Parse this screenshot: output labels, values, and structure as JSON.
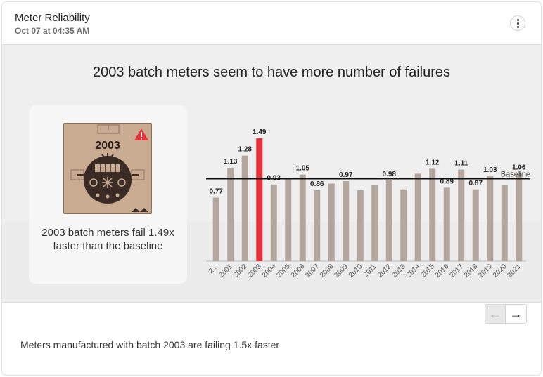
{
  "header": {
    "title": "Meter Reliability",
    "timestamp": "Oct 07 at 04:35 AM",
    "menu_icon": "kebab-menu-icon"
  },
  "insight": {
    "headline": "2003 batch meters seem to have more number of failures",
    "image_label": "2003",
    "image_icon": "warning-triangle-icon",
    "text": "2003 batch meters fail 1.49x faster than the baseline"
  },
  "chart_data": {
    "type": "bar",
    "categories": [
      "2...",
      "2001",
      "2002",
      "2003",
      "2004",
      "2005",
      "2006",
      "2007",
      "2008",
      "2009",
      "2010",
      "2011",
      "2012",
      "2013",
      "2014",
      "2015",
      "2016",
      "2017",
      "2018",
      "2019",
      "2020",
      "2021"
    ],
    "values": [
      0.77,
      1.13,
      1.28,
      1.49,
      0.93,
      1.0,
      1.05,
      0.86,
      0.94,
      0.97,
      0.86,
      0.92,
      0.98,
      0.87,
      1.06,
      1.12,
      0.89,
      1.11,
      0.87,
      1.03,
      0.92,
      1.06
    ],
    "data_labels": [
      "0.77",
      "1.13",
      "1.28",
      "1.49",
      "0.93",
      "",
      "1.05",
      "0.86",
      "",
      "0.97",
      "",
      "",
      "0.98",
      "",
      "",
      "1.12",
      "0.89",
      "1.11",
      "0.87",
      "1.03",
      "",
      "1.06"
    ],
    "highlight_category": "2003",
    "baseline": 1.0,
    "baseline_label": "Baseline",
    "ylim": [
      0,
      1.6
    ],
    "colors": {
      "bar": "#b3a69c",
      "highlight": "#e8303b",
      "baseline": "#111111"
    },
    "title": "",
    "xlabel": "",
    "ylabel": ""
  },
  "pagination": {
    "prev_icon": "arrow-left-icon",
    "next_icon": "arrow-right-icon",
    "prev_glyph": "←",
    "next_glyph": "→"
  },
  "summary": "Meters manufactured with batch 2003 are failing 1.5x faster"
}
